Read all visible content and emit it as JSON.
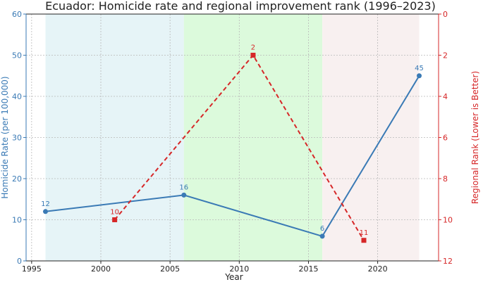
{
  "chart_data": {
    "type": "line",
    "title": "Ecuador: Homicide rate and regional improvement rank (1996–2023)",
    "xlabel": "Year",
    "ylabel_left": "Homicide Rate (per 100,000)",
    "ylabel_right": "Regional Rank (Lower is Better)",
    "xlim": [
      1994.6,
      2024.4
    ],
    "ylim_left": [
      0,
      60
    ],
    "ylim_right": [
      12,
      0
    ],
    "xticks": [
      1995,
      2000,
      2005,
      2010,
      2015,
      2020
    ],
    "yticks_left": [
      0,
      10,
      20,
      30,
      40,
      50,
      60
    ],
    "yticks_right": [
      0,
      2,
      4,
      6,
      8,
      10,
      12
    ],
    "grid": true,
    "shaded_periods": [
      {
        "start": 1996,
        "end": 2006,
        "color": "#e6f4f7"
      },
      {
        "start": 2006,
        "end": 2016,
        "color": "#dcfadc"
      },
      {
        "start": 2016,
        "end": 2023,
        "color": "#f8f0f0"
      }
    ],
    "series": [
      {
        "axis": "left",
        "color": "#3a7ab5",
        "marker": "circle",
        "linestyle": "solid",
        "x": [
          1996,
          2006,
          2016,
          2023
        ],
        "values": [
          12,
          16,
          6,
          45
        ]
      },
      {
        "axis": "right",
        "color": "#d62728",
        "marker": "square",
        "linestyle": "dashed",
        "x": [
          2001,
          2011,
          2019
        ],
        "values": [
          10,
          2,
          11
        ]
      }
    ],
    "colors": {
      "left_axis": "#3a7ab5",
      "right_axis": "#d62728"
    }
  }
}
